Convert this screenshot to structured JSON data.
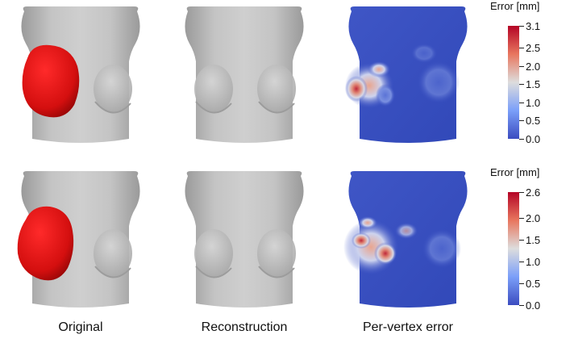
{
  "rows": [
    {
      "colorbar": {
        "title": "Error [mm]",
        "ticks": [
          "3.1",
          "2.5",
          "2.0",
          "1.5",
          "1.0",
          "0.5",
          "0.0"
        ],
        "max": 3.1
      }
    },
    {
      "colorbar": {
        "title": "Error [mm]",
        "ticks": [
          "2.6",
          "2.0",
          "1.5",
          "1.0",
          "0.5",
          "0.0"
        ],
        "max": 2.6
      }
    }
  ],
  "column_labels": [
    "Original",
    "Reconstruction",
    "Per-vertex error"
  ],
  "colors": {
    "mesh": "#b9b9b9",
    "lesion": "#d40f0f",
    "colormap_low": "#3b4cc0",
    "colormap_mid": "#dddddd",
    "colormap_high": "#b40426"
  }
}
